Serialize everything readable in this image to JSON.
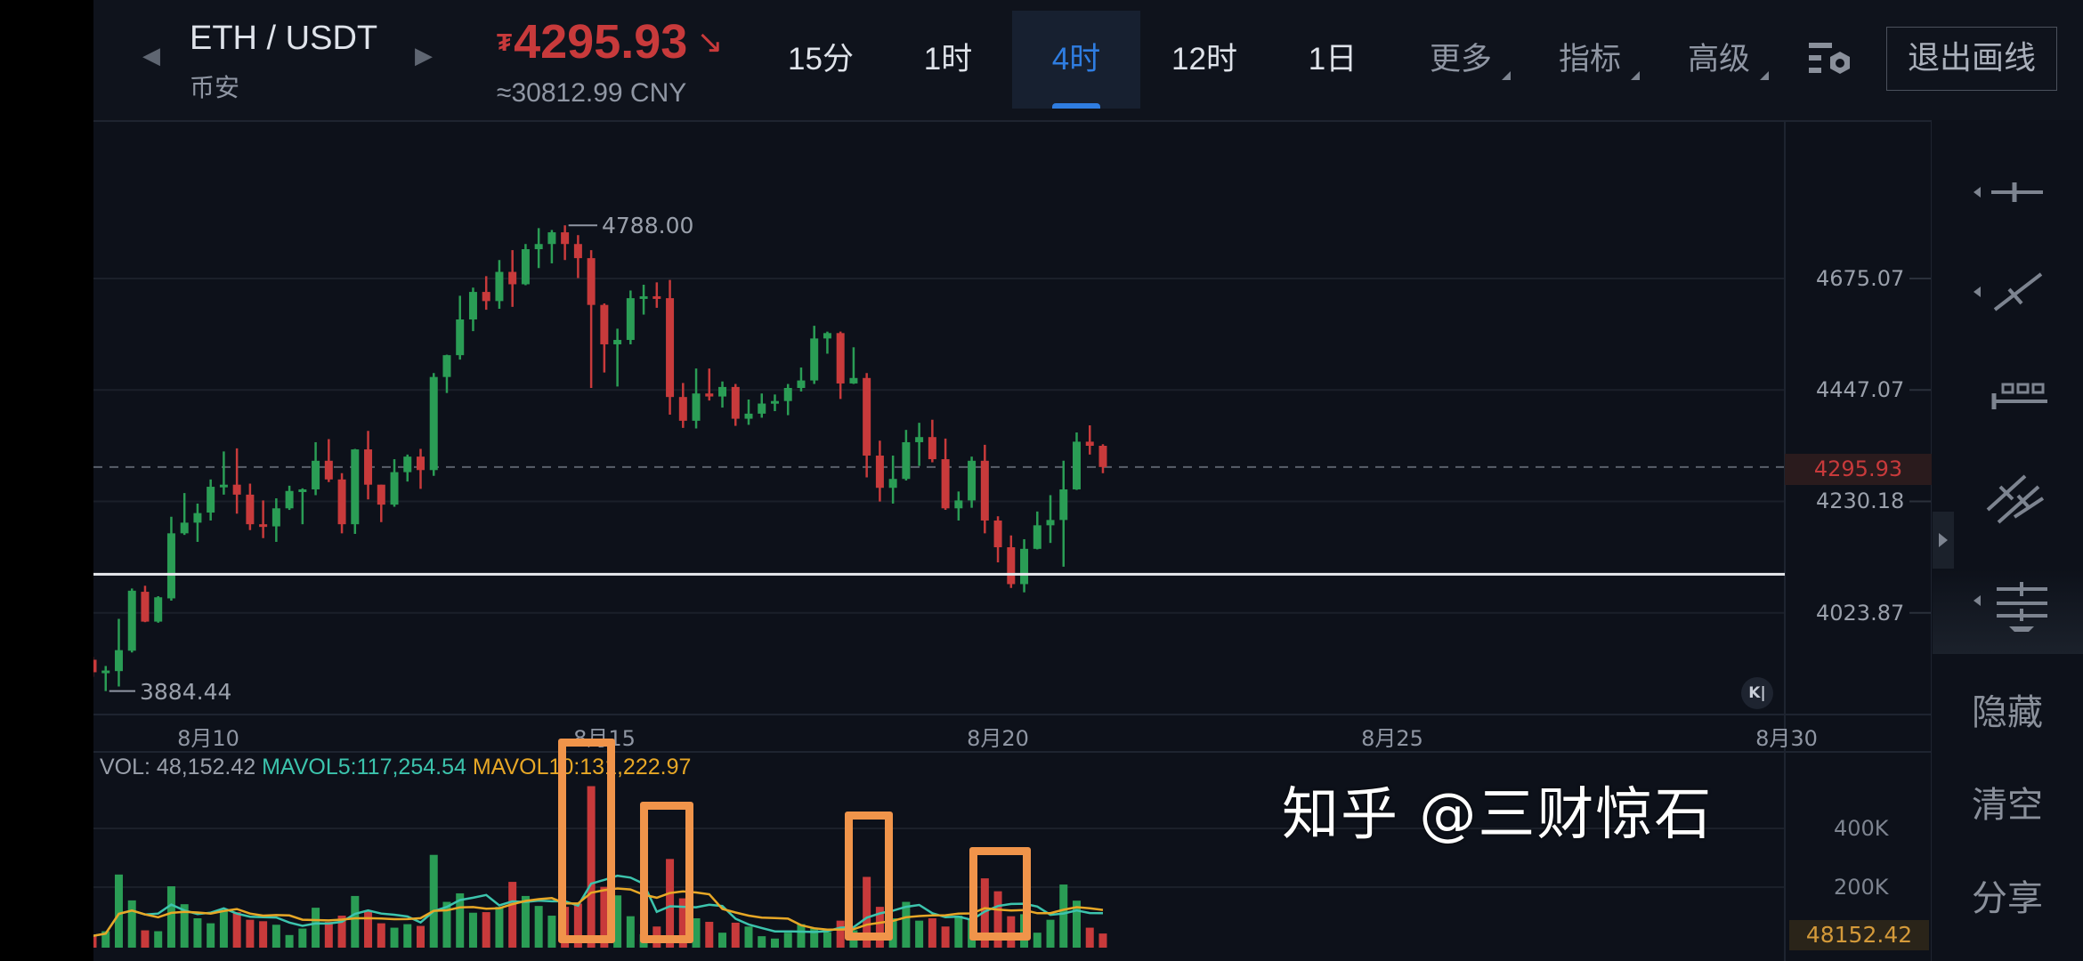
{
  "header": {
    "pair": "ETH / USDT",
    "exchange": "币安",
    "currency_symbol": "₮",
    "price": "4295.93",
    "trend_icon": "arrow-down-right-icon",
    "trend_glyph": "↘",
    "cny": "≈30812.99 CNY",
    "tabs": [
      {
        "label": "15分"
      },
      {
        "label": "1时"
      },
      {
        "label": "4时"
      },
      {
        "label": "12时"
      },
      {
        "label": "1日"
      }
    ],
    "active_tab": "4时",
    "menus": [
      {
        "label": "更多"
      },
      {
        "label": "指标"
      },
      {
        "label": "高级"
      }
    ],
    "settings_icon": "chart-settings-icon",
    "exit_button": "退出画线"
  },
  "indicators": {
    "vol": "VOL: 48,152.42",
    "mavol5": "MAVOL5:117,254.54",
    "mavol10": "MAVOL10:131,222.97"
  },
  "toolbar": {
    "tools": [
      "horizontal-line-tool-icon",
      "trend-line-tool-icon",
      "price-range-tool-icon",
      "parallel-channel-tool-icon",
      "fibonacci-tool-icon"
    ],
    "actions": [
      {
        "label": "隐藏"
      },
      {
        "label": "清空"
      },
      {
        "label": "分享"
      }
    ]
  },
  "watermark": "知乎 @三财惊石",
  "colors": {
    "up": "#2a9d55",
    "down": "#c83a3b",
    "accent": "#2f7de1",
    "mavol5": "#3cc4ad",
    "mavol10": "#e7a726",
    "highlight": "#f0944a",
    "background": "#0d111a"
  },
  "chart_data": {
    "type": "candlestick",
    "y_scale": "log",
    "interval": "4时",
    "price_ticks": [
      "4675.07",
      "4447.07",
      "4230.18",
      "4023.87"
    ],
    "date_ticks": [
      "8月10",
      "8月15",
      "8月20",
      "8月25",
      "8月30"
    ],
    "current_price": "4295.93",
    "max_label": "4788.00",
    "min_label": "3884.44",
    "drawn_horizontal_line": 4094,
    "candles_ohlc": [
      [
        3940,
        3945,
        3910,
        3918
      ],
      [
        3918,
        3929,
        3885,
        3921
      ],
      [
        3920,
        4013,
        3893,
        3957
      ],
      [
        3956,
        4068,
        3953,
        4064
      ],
      [
        4062,
        4073,
        4007,
        4008
      ],
      [
        4008,
        4054,
        4006,
        4052
      ],
      [
        4050,
        4201,
        4046,
        4170
      ],
      [
        4170,
        4246,
        4167,
        4190
      ],
      [
        4190,
        4226,
        4154,
        4208
      ],
      [
        4209,
        4272,
        4194,
        4258
      ],
      [
        4258,
        4326,
        4243,
        4262
      ],
      [
        4262,
        4332,
        4207,
        4243
      ],
      [
        4243,
        4264,
        4176,
        4187
      ],
      [
        4187,
        4232,
        4161,
        4183
      ],
      [
        4183,
        4236,
        4154,
        4217
      ],
      [
        4217,
        4260,
        4214,
        4250
      ],
      [
        4250,
        4255,
        4187,
        4253
      ],
      [
        4253,
        4344,
        4242,
        4308
      ],
      [
        4308,
        4350,
        4267,
        4272
      ],
      [
        4272,
        4284,
        4170,
        4187
      ],
      [
        4187,
        4331,
        4169,
        4330
      ],
      [
        4330,
        4366,
        4234,
        4262
      ],
      [
        4262,
        4262,
        4191,
        4224
      ],
      [
        4224,
        4311,
        4220,
        4286
      ],
      [
        4286,
        4320,
        4268,
        4316
      ],
      [
        4316,
        4331,
        4254,
        4290
      ],
      [
        4290,
        4481,
        4279,
        4473
      ],
      [
        4473,
        4518,
        4441,
        4517
      ],
      [
        4517,
        4639,
        4508,
        4590
      ],
      [
        4590,
        4656,
        4566,
        4647
      ],
      [
        4647,
        4680,
        4610,
        4628
      ],
      [
        4628,
        4714,
        4612,
        4689
      ],
      [
        4689,
        4735,
        4616,
        4663
      ],
      [
        4663,
        4748,
        4661,
        4737
      ],
      [
        4737,
        4782,
        4697,
        4748
      ],
      [
        4748,
        4778,
        4707,
        4773
      ],
      [
        4773,
        4788,
        4714,
        4748
      ],
      [
        4748,
        4767,
        4676,
        4718
      ],
      [
        4718,
        4735,
        4451,
        4620
      ],
      [
        4620,
        4623,
        4482,
        4539
      ],
      [
        4539,
        4571,
        4454,
        4548
      ],
      [
        4548,
        4650,
        4539,
        4634
      ],
      [
        4634,
        4662,
        4600,
        4638
      ],
      [
        4638,
        4667,
        4614,
        4634
      ],
      [
        4634,
        4672,
        4398,
        4433
      ],
      [
        4433,
        4461,
        4372,
        4386
      ],
      [
        4386,
        4490,
        4371,
        4440
      ],
      [
        4440,
        4490,
        4426,
        4434
      ],
      [
        4434,
        4464,
        4412,
        4453
      ],
      [
        4453,
        4459,
        4376,
        4390
      ],
      [
        4390,
        4428,
        4378,
        4400
      ],
      [
        4400,
        4440,
        4392,
        4420
      ],
      [
        4420,
        4438,
        4405,
        4425
      ],
      [
        4425,
        4459,
        4397,
        4451
      ],
      [
        4451,
        4492,
        4444,
        4466
      ],
      [
        4466,
        4577,
        4459,
        4551
      ],
      [
        4551,
        4565,
        4520,
        4562
      ],
      [
        4562,
        4565,
        4429,
        4460
      ],
      [
        4460,
        4533,
        4459,
        4471
      ],
      [
        4471,
        4481,
        4276,
        4318
      ],
      [
        4318,
        4347,
        4230,
        4256
      ],
      [
        4256,
        4318,
        4226,
        4273
      ],
      [
        4273,
        4368,
        4270,
        4344
      ],
      [
        4344,
        4382,
        4298,
        4354
      ],
      [
        4354,
        4388,
        4305,
        4311
      ],
      [
        4311,
        4351,
        4214,
        4217
      ],
      [
        4217,
        4249,
        4194,
        4232
      ],
      [
        4232,
        4316,
        4218,
        4308
      ],
      [
        4308,
        4339,
        4170,
        4194
      ],
      [
        4194,
        4202,
        4116,
        4144
      ],
      [
        4144,
        4166,
        4069,
        4076
      ],
      [
        4076,
        4159,
        4061,
        4141
      ],
      [
        4141,
        4211,
        4140,
        4185
      ],
      [
        4185,
        4242,
        4152,
        4195
      ],
      [
        4195,
        4308,
        4108,
        4253
      ],
      [
        4253,
        4363,
        4252,
        4345
      ],
      [
        4345,
        4377,
        4320,
        4337
      ],
      [
        4337,
        4340,
        4284,
        4295.93
      ]
    ],
    "volume": {
      "ticks": [
        "400K",
        "200K"
      ],
      "current": "48152.42",
      "values": [
        40000,
        56000,
        249000,
        161000,
        59000,
        56000,
        209000,
        148000,
        100000,
        83000,
        129000,
        121000,
        95000,
        90000,
        78000,
        43000,
        65000,
        136000,
        88000,
        109000,
        176000,
        124000,
        83000,
        68000,
        80000,
        74000,
        316000,
        156000,
        185000,
        119000,
        121000,
        139000,
        224000,
        176000,
        142000,
        109000,
        139000,
        150000,
        550000,
        207000,
        178000,
        107000,
        46000,
        72000,
        302000,
        168000,
        100000,
        88000,
        51000,
        85000,
        72000,
        39000,
        31000,
        51000,
        80000,
        65000,
        53000,
        92000,
        59000,
        241000,
        139000,
        100000,
        156000,
        92000,
        100000,
        72000,
        109000,
        100000,
        236000,
        192000,
        107000,
        114000,
        51000,
        95000,
        215000,
        160000,
        68000,
        48152.42
      ]
    }
  }
}
